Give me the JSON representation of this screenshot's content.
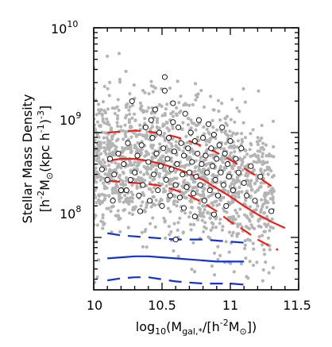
{
  "chart_data": {
    "type": "scatter",
    "xlabel_parts": {
      "base": "log",
      "base_sub": "10",
      "open": "(M",
      "sub": "gal,*",
      "close": "/[h",
      "sup": "-2",
      "m": "M",
      "msub": "⊙",
      "end": "])"
    },
    "ylabel_line1": "Stellar Mass Density",
    "ylabel_line2_parts": {
      "a": "[h",
      "sup1": "-2",
      "b": "M",
      "sub": "⊙",
      "c": "(kpc h",
      "sup2": "-1",
      "d": ")",
      "sup3": "-3",
      "e": "]"
    },
    "xlim": [
      10.0,
      11.5
    ],
    "ylim_log10": [
      7.5,
      10.0
    ],
    "yscale": "log",
    "x_ticks": [
      10.0,
      10.5,
      11.0,
      11.5
    ],
    "x_tick_labels": [
      "10",
      "10.5",
      "11",
      "11.5"
    ],
    "y_ticks_log10": [
      8,
      9,
      10
    ],
    "y_tick_labels": [
      {
        "base": "10",
        "exp": "8"
      },
      {
        "base": "10",
        "exp": "9"
      },
      {
        "base": "10",
        "exp": "10"
      }
    ],
    "colors": {
      "gray_points": "#b4b4b4",
      "open_circles": "#000000",
      "red": "#e8201a",
      "blue": "#1432d2"
    },
    "series": [
      {
        "kind": "open-circles",
        "points": [
          [
            10.06,
            8.65
          ],
          [
            10.1,
            8.55
          ],
          [
            10.12,
            8.75
          ],
          [
            10.15,
            8.6
          ],
          [
            10.18,
            8.8
          ],
          [
            10.2,
            8.45
          ],
          [
            10.22,
            8.7
          ],
          [
            10.25,
            8.9
          ],
          [
            10.27,
            8.55
          ],
          [
            10.28,
            9.3
          ],
          [
            10.3,
            8.62
          ],
          [
            10.32,
            8.78
          ],
          [
            10.33,
            8.4
          ],
          [
            10.35,
            8.88
          ],
          [
            10.36,
            8.5
          ],
          [
            10.38,
            9.05
          ],
          [
            10.4,
            8.72
          ],
          [
            10.41,
            8.35
          ],
          [
            10.43,
            8.95
          ],
          [
            10.44,
            8.6
          ],
          [
            10.45,
            9.22
          ],
          [
            10.46,
            8.8
          ],
          [
            10.47,
            8.45
          ],
          [
            10.48,
            9.0
          ],
          [
            10.49,
            8.68
          ],
          [
            10.5,
            8.3
          ],
          [
            10.51,
            8.85
          ],
          [
            10.52,
            9.4
          ],
          [
            10.53,
            8.55
          ],
          [
            10.54,
            8.75
          ],
          [
            10.55,
            8.95
          ],
          [
            10.56,
            8.4
          ],
          [
            10.57,
            8.65
          ],
          [
            10.58,
            9.1
          ],
          [
            10.59,
            8.82
          ],
          [
            10.6,
            8.5
          ],
          [
            10.61,
            8.7
          ],
          [
            10.62,
            9.05
          ],
          [
            10.63,
            8.38
          ],
          [
            10.64,
            8.9
          ],
          [
            10.65,
            8.6
          ],
          [
            10.66,
            8.78
          ],
          [
            10.67,
            9.18
          ],
          [
            10.68,
            8.48
          ],
          [
            10.69,
            8.85
          ],
          [
            10.7,
            8.62
          ],
          [
            10.71,
            9.0
          ],
          [
            10.72,
            8.72
          ],
          [
            10.73,
            8.42
          ],
          [
            10.74,
            8.92
          ],
          [
            10.75,
            8.58
          ],
          [
            10.76,
            8.8
          ],
          [
            10.77,
            9.12
          ],
          [
            10.78,
            8.5
          ],
          [
            10.79,
            8.7
          ],
          [
            10.8,
            8.95
          ],
          [
            10.81,
            8.35
          ],
          [
            10.82,
            8.78
          ],
          [
            10.83,
            8.62
          ],
          [
            10.84,
            9.08
          ],
          [
            10.85,
            8.45
          ],
          [
            10.86,
            8.85
          ],
          [
            10.87,
            8.68
          ],
          [
            10.88,
            8.98
          ],
          [
            10.89,
            8.55
          ],
          [
            10.9,
            8.75
          ],
          [
            10.91,
            8.4
          ],
          [
            10.92,
            8.88
          ],
          [
            10.93,
            8.62
          ],
          [
            10.94,
            9.05
          ],
          [
            10.95,
            8.5
          ],
          [
            10.96,
            8.8
          ],
          [
            10.97,
            8.3
          ],
          [
            10.98,
            8.7
          ],
          [
            10.99,
            8.58
          ],
          [
            11.0,
            8.92
          ],
          [
            11.02,
            8.45
          ],
          [
            11.04,
            8.75
          ],
          [
            11.06,
            8.62
          ],
          [
            11.08,
            8.85
          ],
          [
            11.1,
            8.52
          ],
          [
            11.12,
            8.4
          ],
          [
            11.15,
            8.68
          ],
          [
            11.18,
            8.35
          ],
          [
            11.22,
            8.58
          ],
          [
            11.3,
            8.25
          ],
          [
            10.52,
            9.53
          ],
          [
            10.6,
            7.98
          ],
          [
            10.14,
            8.35
          ],
          [
            10.24,
            8.45
          ],
          [
            10.34,
            8.25
          ],
          [
            10.66,
            8.28
          ],
          [
            10.74,
            8.2
          ],
          [
            10.88,
            8.22
          ],
          [
            10.42,
            9.12
          ],
          [
            10.58,
            9.28
          ]
        ]
      },
      {
        "kind": "curve",
        "color": "red",
        "style": "solid",
        "points": [
          [
            10.1,
            8.73
          ],
          [
            10.2,
            8.75
          ],
          [
            10.3,
            8.75
          ],
          [
            10.4,
            8.73
          ],
          [
            10.5,
            8.7
          ],
          [
            10.6,
            8.66
          ],
          [
            10.7,
            8.61
          ],
          [
            10.8,
            8.55
          ],
          [
            10.9,
            8.47
          ],
          [
            11.0,
            8.39
          ],
          [
            11.1,
            8.3
          ],
          [
            11.2,
            8.22
          ],
          [
            11.3,
            8.15
          ],
          [
            11.4,
            8.09
          ]
        ]
      },
      {
        "kind": "curve",
        "color": "red",
        "style": "dashed",
        "points": [
          [
            10.1,
            9.0
          ],
          [
            10.2,
            9.01
          ],
          [
            10.3,
            9.02
          ],
          [
            10.4,
            9.01
          ],
          [
            10.5,
            8.99
          ],
          [
            10.6,
            8.96
          ],
          [
            10.7,
            8.92
          ],
          [
            10.8,
            8.87
          ],
          [
            10.9,
            8.81
          ],
          [
            11.0,
            8.74
          ],
          [
            11.1,
            8.66
          ],
          [
            11.2,
            8.58
          ],
          [
            11.3,
            8.49
          ]
        ]
      },
      {
        "kind": "curve",
        "color": "red",
        "style": "dashed",
        "points": [
          [
            10.1,
            8.54
          ],
          [
            10.2,
            8.53
          ],
          [
            10.3,
            8.52
          ],
          [
            10.4,
            8.51
          ],
          [
            10.5,
            8.49
          ],
          [
            10.6,
            8.45
          ],
          [
            10.7,
            8.4
          ],
          [
            10.8,
            8.33
          ],
          [
            10.9,
            8.25
          ],
          [
            11.0,
            8.15
          ],
          [
            11.1,
            8.07
          ],
          [
            11.2,
            7.98
          ],
          [
            11.3,
            7.91
          ],
          [
            11.35,
            7.88
          ]
        ]
      },
      {
        "kind": "curve",
        "color": "blue",
        "style": "solid",
        "points": [
          [
            10.1,
            7.8
          ],
          [
            10.2,
            7.81
          ],
          [
            10.3,
            7.82
          ],
          [
            10.4,
            7.82
          ],
          [
            10.5,
            7.81
          ],
          [
            10.6,
            7.8
          ],
          [
            10.7,
            7.79
          ],
          [
            10.8,
            7.78
          ],
          [
            10.9,
            7.77
          ],
          [
            11.0,
            7.77
          ],
          [
            11.1,
            7.77
          ]
        ]
      },
      {
        "kind": "curve",
        "color": "blue",
        "style": "dashed",
        "points": [
          [
            10.1,
            8.04
          ],
          [
            10.2,
            8.02
          ],
          [
            10.3,
            8.01
          ],
          [
            10.4,
            8.0
          ],
          [
            10.5,
            7.99
          ],
          [
            10.6,
            7.98
          ],
          [
            10.7,
            7.98
          ],
          [
            10.8,
            7.98
          ],
          [
            10.9,
            7.97
          ],
          [
            11.0,
            7.96
          ],
          [
            11.1,
            7.95
          ],
          [
            11.15,
            7.95
          ]
        ]
      },
      {
        "kind": "curve",
        "color": "blue",
        "style": "dashed",
        "points": [
          [
            10.1,
            7.59
          ],
          [
            10.2,
            7.61
          ],
          [
            10.3,
            7.62
          ],
          [
            10.4,
            7.62
          ],
          [
            10.5,
            7.6
          ],
          [
            10.6,
            7.58
          ],
          [
            10.7,
            7.57
          ],
          [
            10.8,
            7.56
          ],
          [
            10.9,
            7.56
          ],
          [
            11.0,
            7.56
          ],
          [
            11.1,
            7.55
          ],
          [
            11.15,
            7.54
          ]
        ]
      }
    ],
    "gray_cloud": {
      "count": 1500,
      "x_range": [
        10.0,
        11.32
      ],
      "y_center_log10": [
        [
          10.0,
          8.72
        ],
        [
          10.5,
          8.7
        ],
        [
          11.0,
          8.55
        ],
        [
          11.3,
          8.4
        ]
      ],
      "y_spread_log10": 0.33
    }
  }
}
